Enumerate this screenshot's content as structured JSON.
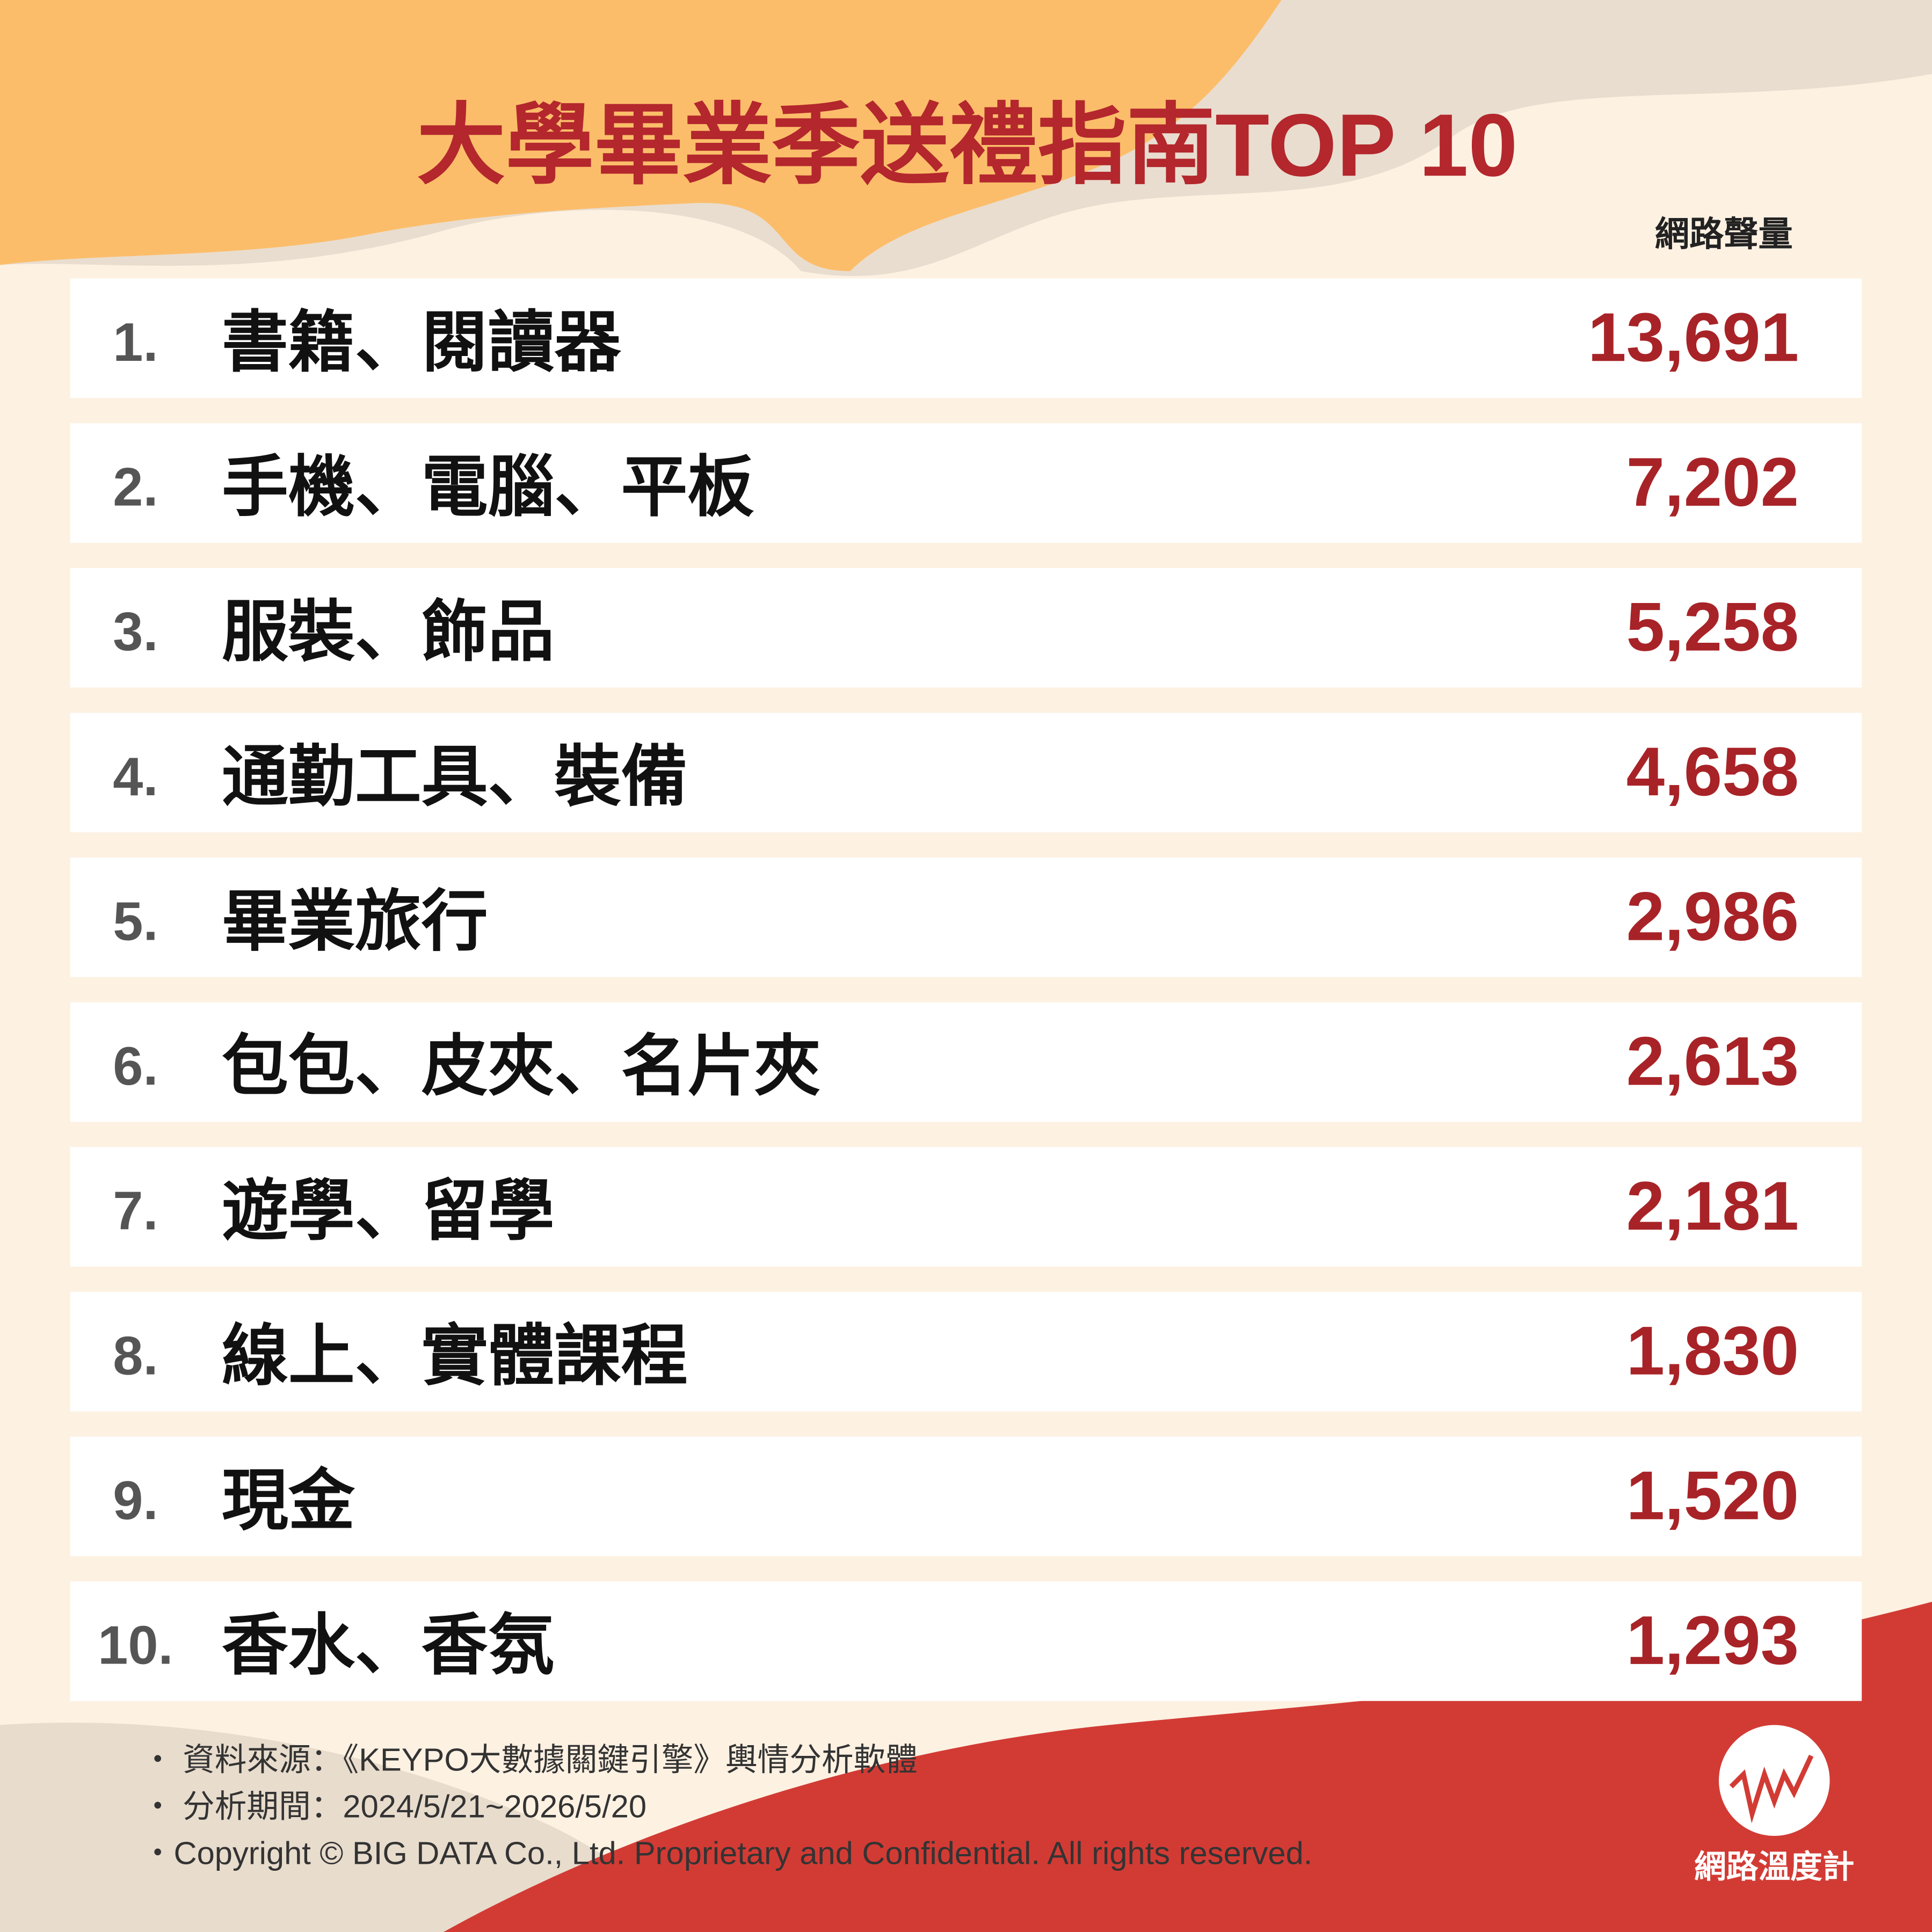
{
  "header": {
    "title": "大學畢業季送禮指南TOP 10",
    "value_header": "網路聲量"
  },
  "table": {
    "rows": [
      {
        "rank": "1.",
        "item": "書籍、閱讀器",
        "volume": "13,691"
      },
      {
        "rank": "2.",
        "item": "手機、電腦、平板",
        "volume": "7,202"
      },
      {
        "rank": "3.",
        "item": "服裝、飾品",
        "volume": "5,258"
      },
      {
        "rank": "4.",
        "item": "通勤工具、裝備",
        "volume": "4,658"
      },
      {
        "rank": "5.",
        "item": "畢業旅行",
        "volume": "2,986"
      },
      {
        "rank": "6.",
        "item": "包包、皮夾、名片夾",
        "volume": "2,613"
      },
      {
        "rank": "7.",
        "item": "遊學、留學",
        "volume": "2,181"
      },
      {
        "rank": "8.",
        "item": "線上、實體課程",
        "volume": "1,830"
      },
      {
        "rank": "9.",
        "item": "現金",
        "volume": "1,520"
      },
      {
        "rank": "10.",
        "item": "香水、香氛",
        "volume": "1,293"
      }
    ]
  },
  "footer": {
    "notes": [
      "・ 資料來源：《KEYPO大數據關鍵引擎》輿情分析軟體",
      "・ 分析期間：2024/5/21~2026/5/20",
      "・Copyright © BIG DATA Co., Ltd. Proprietary and Confidential. All rights reserved."
    ],
    "logo_text": "網路溫度計"
  }
}
